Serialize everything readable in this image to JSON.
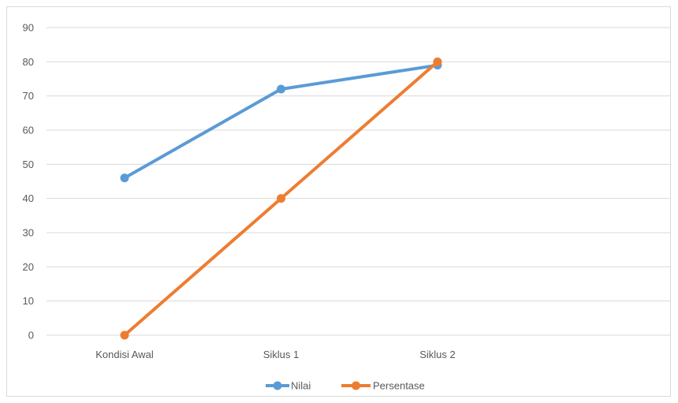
{
  "chart_data": {
    "type": "line",
    "categories": [
      "Kondisi Awal",
      "Siklus 1",
      "Siklus 2"
    ],
    "series": [
      {
        "name": "Nilai",
        "values": [
          46,
          72,
          79
        ],
        "color": "#5b9bd5"
      },
      {
        "name": "Persentase",
        "values": [
          0,
          40,
          80
        ],
        "color": "#ed7d31"
      }
    ],
    "yticks": [
      "0",
      "10",
      "20",
      "30",
      "40",
      "50",
      "60",
      "70",
      "80",
      "90"
    ],
    "ylim": [
      0,
      90
    ],
    "grid": true,
    "legend_position": "bottom",
    "gridline_color": "#d9d9d9"
  }
}
